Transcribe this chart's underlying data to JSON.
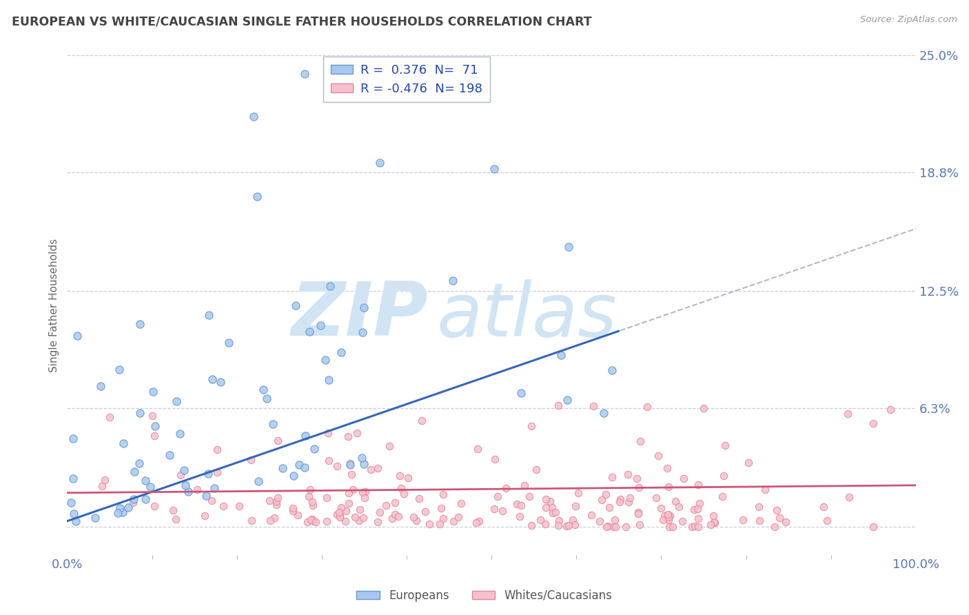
{
  "title": "EUROPEAN VS WHITE/CAUCASIAN SINGLE FATHER HOUSEHOLDS CORRELATION CHART",
  "source": "Source: ZipAtlas.com",
  "ylabel": "Single Father Households",
  "xlabel": "",
  "xlim": [
    0,
    100
  ],
  "ylim": [
    -1.5,
    25
  ],
  "yticks": [
    0,
    6.3,
    12.5,
    18.8,
    25.0
  ],
  "ytick_labels": [
    "",
    "6.3%",
    "12.5%",
    "18.8%",
    "25.0%"
  ],
  "xtick_labels": [
    "0.0%",
    "100.0%"
  ],
  "xticks": [
    0,
    100
  ],
  "blue_R": 0.376,
  "blue_N": 71,
  "pink_R": -0.476,
  "pink_N": 198,
  "blue_dot_color": "#A8C8F0",
  "blue_dot_edge": "#6699CC",
  "pink_dot_color": "#F8C0CC",
  "pink_dot_edge": "#DD8899",
  "blue_line_color": "#3366BB",
  "pink_line_color": "#CC5577",
  "blue_dash_color": "#99AABB",
  "grid_color": "#CCCCDD",
  "title_color": "#444444",
  "tick_label_color": "#5577BB",
  "legend_text_color": "#2244BB",
  "background_color": "#FFFFFF",
  "watermark_color": "#D0E4F4"
}
